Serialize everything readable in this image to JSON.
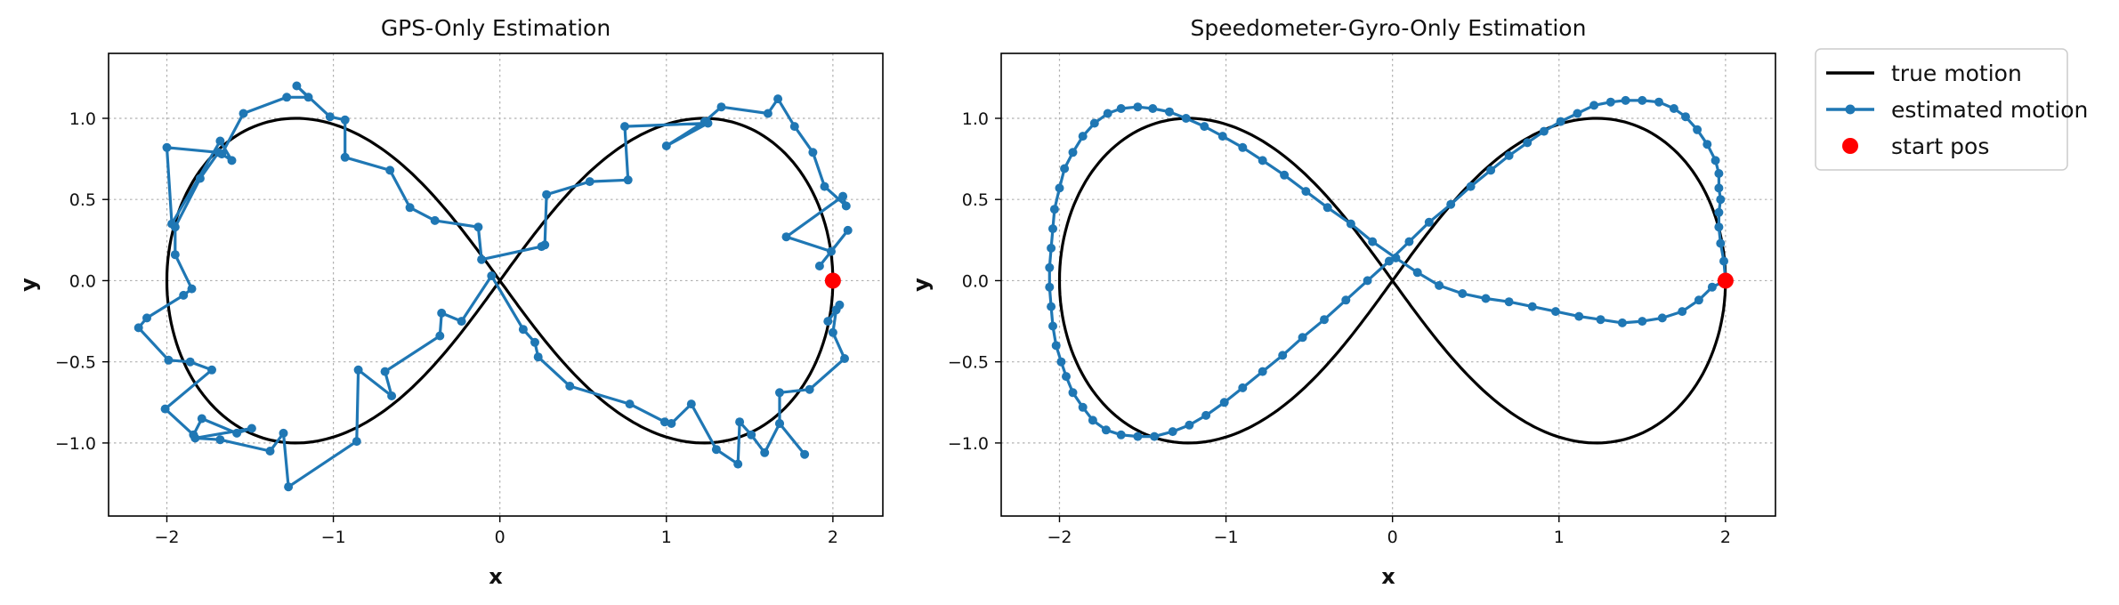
{
  "colors": {
    "true": "#000000",
    "estimated": "#1f77b4",
    "start": "#ff0000"
  },
  "legend": {
    "placement": "outside-top-right",
    "entries": [
      {
        "label": "true motion",
        "kind": "line",
        "color": "#000000"
      },
      {
        "label": "estimated motion",
        "kind": "line-marker",
        "color": "#1f77b4"
      },
      {
        "label": "start pos",
        "kind": "marker",
        "color": "#ff0000"
      }
    ]
  },
  "chart_data": [
    {
      "type": "line",
      "title": "GPS-Only Estimation",
      "xlabel": "x",
      "ylabel": "y",
      "xlim": [
        -2.35,
        2.3
      ],
      "ylim": [
        -1.45,
        1.4
      ],
      "xticks": [
        -2,
        -1,
        0,
        1,
        2
      ],
      "xtick_labels": [
        "−2",
        "−1",
        "0",
        "1",
        "2"
      ],
      "yticks": [
        -1.0,
        -0.5,
        0.0,
        0.5,
        1.0
      ],
      "ytick_labels": [
        "−1.0",
        "−0.5",
        "0.0",
        "0.5",
        "1.0"
      ],
      "grid": true,
      "start_pos": [
        2.0,
        0.0
      ],
      "series": [
        {
          "name": "true motion",
          "style": "line",
          "curve": "lemniscate",
          "a": 2.0,
          "color": "#000000"
        },
        {
          "name": "estimated motion",
          "style": "line-marker",
          "color": "#1f77b4",
          "points": [
            [
              1.92,
              0.09
            ],
            [
              2.09,
              0.31
            ],
            [
              1.99,
              0.18
            ],
            [
              1.72,
              0.27
            ],
            [
              2.06,
              0.52
            ],
            [
              2.08,
              0.46
            ],
            [
              1.95,
              0.58
            ],
            [
              1.88,
              0.79
            ],
            [
              1.77,
              0.95
            ],
            [
              1.67,
              1.12
            ],
            [
              1.61,
              1.03
            ],
            [
              1.33,
              1.07
            ],
            [
              1.23,
              0.98
            ],
            [
              1.0,
              0.83
            ],
            [
              1.25,
              0.97
            ],
            [
              0.75,
              0.95
            ],
            [
              0.77,
              0.62
            ],
            [
              0.54,
              0.61
            ],
            [
              0.28,
              0.53
            ],
            [
              0.27,
              0.22
            ],
            [
              0.25,
              0.21
            ],
            [
              -0.11,
              0.13
            ],
            [
              -0.13,
              0.33
            ],
            [
              -0.39,
              0.37
            ],
            [
              -0.54,
              0.45
            ],
            [
              -0.66,
              0.68
            ],
            [
              -0.93,
              0.76
            ],
            [
              -0.93,
              0.99
            ],
            [
              -1.02,
              1.01
            ],
            [
              -1.22,
              1.2
            ],
            [
              -1.15,
              1.13
            ],
            [
              -1.28,
              1.13
            ],
            [
              -1.54,
              1.03
            ],
            [
              -1.67,
              0.78
            ],
            [
              -1.61,
              0.74
            ],
            [
              -1.68,
              0.86
            ],
            [
              -1.97,
              0.35
            ],
            [
              -2.0,
              0.82
            ],
            [
              -1.69,
              0.79
            ],
            [
              -1.8,
              0.63
            ],
            [
              -1.95,
              0.33
            ],
            [
              -1.95,
              0.16
            ],
            [
              -1.85,
              -0.05
            ],
            [
              -1.9,
              -0.09
            ],
            [
              -2.12,
              -0.23
            ],
            [
              -2.17,
              -0.29
            ],
            [
              -1.99,
              -0.49
            ],
            [
              -1.86,
              -0.5
            ],
            [
              -1.73,
              -0.55
            ],
            [
              -2.01,
              -0.79
            ],
            [
              -1.84,
              -0.95
            ],
            [
              -1.79,
              -0.85
            ],
            [
              -1.58,
              -0.94
            ],
            [
              -1.49,
              -0.91
            ],
            [
              -1.83,
              -0.97
            ],
            [
              -1.68,
              -0.98
            ],
            [
              -1.38,
              -1.05
            ],
            [
              -1.3,
              -0.94
            ],
            [
              -1.27,
              -1.27
            ],
            [
              -0.86,
              -0.99
            ],
            [
              -0.85,
              -0.55
            ],
            [
              -0.65,
              -0.71
            ],
            [
              -0.69,
              -0.56
            ],
            [
              -0.36,
              -0.34
            ],
            [
              -0.35,
              -0.2
            ],
            [
              -0.23,
              -0.25
            ],
            [
              -0.05,
              0.03
            ],
            [
              0.14,
              -0.3
            ],
            [
              0.21,
              -0.38
            ],
            [
              0.23,
              -0.47
            ],
            [
              0.42,
              -0.65
            ],
            [
              0.78,
              -0.76
            ],
            [
              0.99,
              -0.87
            ],
            [
              1.03,
              -0.88
            ],
            [
              1.15,
              -0.76
            ],
            [
              1.3,
              -1.04
            ],
            [
              1.43,
              -1.13
            ],
            [
              1.44,
              -0.87
            ],
            [
              1.51,
              -0.95
            ],
            [
              1.59,
              -1.06
            ],
            [
              1.68,
              -0.88
            ],
            [
              1.83,
              -1.07
            ],
            [
              1.68,
              -0.88
            ],
            [
              1.68,
              -0.69
            ],
            [
              1.86,
              -0.67
            ],
            [
              2.07,
              -0.48
            ],
            [
              2.0,
              -0.32
            ],
            [
              2.02,
              -0.18
            ],
            [
              1.97,
              -0.25
            ],
            [
              2.04,
              -0.15
            ]
          ]
        }
      ]
    },
    {
      "type": "line",
      "title": "Speedometer-Gyro-Only Estimation",
      "xlabel": "x",
      "ylabel": "y",
      "xlim": [
        -2.35,
        2.3
      ],
      "ylim": [
        -1.45,
        1.4
      ],
      "xticks": [
        -2,
        -1,
        0,
        1,
        2
      ],
      "xtick_labels": [
        "−2",
        "−1",
        "0",
        "1",
        "2"
      ],
      "yticks": [
        -1.0,
        -0.5,
        0.0,
        0.5,
        1.0
      ],
      "ytick_labels": [
        "−1.0",
        "−0.5",
        "0.0",
        "0.5",
        "1.0"
      ],
      "grid": true,
      "start_pos": [
        2.0,
        0.0
      ],
      "series": [
        {
          "name": "true motion",
          "style": "line",
          "curve": "lemniscate",
          "a": 2.0,
          "color": "#000000"
        },
        {
          "name": "estimated motion",
          "style": "line-marker",
          "color": "#1f77b4",
          "points": [
            [
              2.0,
              0.0
            ],
            [
              1.99,
              0.12
            ],
            [
              1.97,
              0.23
            ],
            [
              1.96,
              0.33
            ],
            [
              1.96,
              0.42
            ],
            [
              1.97,
              0.5
            ],
            [
              1.96,
              0.57
            ],
            [
              1.96,
              0.66
            ],
            [
              1.94,
              0.74
            ],
            [
              1.89,
              0.84
            ],
            [
              1.83,
              0.93
            ],
            [
              1.76,
              1.01
            ],
            [
              1.69,
              1.06
            ],
            [
              1.6,
              1.1
            ],
            [
              1.5,
              1.11
            ],
            [
              1.4,
              1.11
            ],
            [
              1.31,
              1.1
            ],
            [
              1.21,
              1.08
            ],
            [
              1.11,
              1.03
            ],
            [
              1.01,
              0.98
            ],
            [
              0.91,
              0.92
            ],
            [
              0.81,
              0.85
            ],
            [
              0.7,
              0.77
            ],
            [
              0.59,
              0.68
            ],
            [
              0.47,
              0.58
            ],
            [
              0.35,
              0.47
            ],
            [
              0.22,
              0.36
            ],
            [
              0.1,
              0.24
            ],
            [
              -0.02,
              0.12
            ],
            [
              -0.15,
              0.0
            ],
            [
              -0.28,
              -0.12
            ],
            [
              -0.41,
              -0.24
            ],
            [
              -0.54,
              -0.35
            ],
            [
              -0.66,
              -0.46
            ],
            [
              -0.78,
              -0.56
            ],
            [
              -0.9,
              -0.66
            ],
            [
              -1.01,
              -0.75
            ],
            [
              -1.12,
              -0.83
            ],
            [
              -1.22,
              -0.89
            ],
            [
              -1.32,
              -0.93
            ],
            [
              -1.43,
              -0.96
            ],
            [
              -1.53,
              -0.96
            ],
            [
              -1.63,
              -0.95
            ],
            [
              -1.72,
              -0.92
            ],
            [
              -1.8,
              -0.86
            ],
            [
              -1.86,
              -0.78
            ],
            [
              -1.92,
              -0.69
            ],
            [
              -1.96,
              -0.59
            ],
            [
              -1.99,
              -0.5
            ],
            [
              -2.02,
              -0.4
            ],
            [
              -2.04,
              -0.28
            ],
            [
              -2.05,
              -0.16
            ],
            [
              -2.06,
              -0.04
            ],
            [
              -2.06,
              0.08
            ],
            [
              -2.05,
              0.2
            ],
            [
              -2.04,
              0.32
            ],
            [
              -2.03,
              0.44
            ],
            [
              -2.0,
              0.57
            ],
            [
              -1.97,
              0.69
            ],
            [
              -1.92,
              0.79
            ],
            [
              -1.86,
              0.89
            ],
            [
              -1.79,
              0.97
            ],
            [
              -1.71,
              1.03
            ],
            [
              -1.63,
              1.06
            ],
            [
              -1.53,
              1.07
            ],
            [
              -1.44,
              1.06
            ],
            [
              -1.34,
              1.04
            ],
            [
              -1.24,
              1.0
            ],
            [
              -1.13,
              0.95
            ],
            [
              -1.02,
              0.89
            ],
            [
              -0.9,
              0.82
            ],
            [
              -0.78,
              0.74
            ],
            [
              -0.65,
              0.65
            ],
            [
              -0.52,
              0.55
            ],
            [
              -0.39,
              0.45
            ],
            [
              -0.25,
              0.35
            ],
            [
              -0.12,
              0.24
            ],
            [
              0.02,
              0.14
            ],
            [
              0.15,
              0.05
            ],
            [
              0.28,
              -0.03
            ],
            [
              0.42,
              -0.08
            ],
            [
              0.56,
              -0.11
            ],
            [
              0.7,
              -0.13
            ],
            [
              0.84,
              -0.16
            ],
            [
              0.98,
              -0.19
            ],
            [
              1.12,
              -0.22
            ],
            [
              1.25,
              -0.24
            ],
            [
              1.38,
              -0.26
            ],
            [
              1.5,
              -0.25
            ],
            [
              1.62,
              -0.23
            ],
            [
              1.74,
              -0.19
            ],
            [
              1.84,
              -0.12
            ],
            [
              1.92,
              -0.04
            ],
            [
              2.0,
              0.0
            ]
          ]
        }
      ]
    }
  ]
}
